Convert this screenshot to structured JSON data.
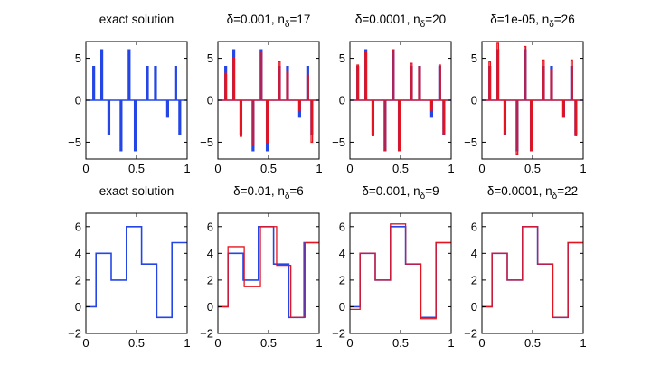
{
  "figure": {
    "colors": {
      "exact": "#2446e6",
      "recon": "#e6141e",
      "axis": "#000000"
    }
  },
  "chart_data": [
    {
      "type": "line",
      "title": "exact solution",
      "title_parts": [
        {
          "text": "exact solution"
        }
      ],
      "xlim": [
        0,
        1
      ],
      "ylim": [
        -7,
        7
      ],
      "xticks": [
        0,
        0.5,
        1
      ],
      "xtick_labels": [
        "0",
        "0.5",
        "1"
      ],
      "yticks": [
        -5,
        0,
        5
      ],
      "ytick_labels": [
        "−5",
        "0",
        "5"
      ],
      "spikes": {
        "x": [
          0.07,
          0.15,
          0.22,
          0.34,
          0.42,
          0.48,
          0.6,
          0.68,
          0.8,
          0.88,
          0.92
        ],
        "h": [
          4,
          6,
          -4,
          -6,
          6,
          -6,
          4,
          4,
          -2,
          4,
          -4
        ]
      },
      "series": [
        {
          "name": "exact",
          "color": "#2446e6",
          "x": [
            0.07,
            0.15,
            0.22,
            0.34,
            0.42,
            0.48,
            0.6,
            0.68,
            0.8,
            0.88,
            0.92
          ],
          "y": [
            4,
            6,
            -4,
            -6,
            6,
            -6,
            4,
            4,
            -2,
            4,
            -4
          ]
        }
      ]
    },
    {
      "type": "line",
      "title": "δ=0.001, nδ=17",
      "title_parts": [
        {
          "text": "δ=0.001, n"
        },
        {
          "text": "δ",
          "sub": true
        },
        {
          "text": "=17"
        }
      ],
      "xlim": [
        0,
        1
      ],
      "ylim": [
        -7,
        7
      ],
      "xticks": [
        0,
        0.5,
        1
      ],
      "xtick_labels": [
        "0",
        "0.5",
        "1"
      ],
      "yticks": [
        -5,
        0,
        5
      ],
      "ytick_labels": [
        "−5",
        "0",
        "5"
      ],
      "spikes": {
        "x": [
          0.07,
          0.15,
          0.22,
          0.34,
          0.42,
          0.48,
          0.6,
          0.68,
          0.8,
          0.88,
          0.92
        ],
        "h": [
          4,
          6,
          -4,
          -6,
          6,
          -6,
          4,
          4,
          -2,
          4,
          -4
        ]
      },
      "series": [
        {
          "name": "exact",
          "color": "#2446e6",
          "x": [
            0.07,
            0.15,
            0.22,
            0.34,
            0.42,
            0.48,
            0.6,
            0.68,
            0.8,
            0.88,
            0.92
          ],
          "y": [
            4,
            6,
            -4,
            -6,
            6,
            -6,
            4,
            4,
            -2,
            4,
            -4
          ]
        },
        {
          "name": "reconstruction",
          "color": "#e6141e",
          "x": [
            0.07,
            0.15,
            0.22,
            0.34,
            0.42,
            0.48,
            0.6,
            0.68,
            0.8,
            0.88,
            0.92
          ],
          "y": [
            3.2,
            5.0,
            -4.3,
            -5.2,
            5.8,
            -5.0,
            4.6,
            3.4,
            -1.2,
            3.0,
            -5.0
          ]
        }
      ]
    },
    {
      "type": "line",
      "title": "δ=0.0001, nδ=20",
      "title_parts": [
        {
          "text": "δ=0.0001, n"
        },
        {
          "text": "δ",
          "sub": true
        },
        {
          "text": "=20"
        }
      ],
      "xlim": [
        0,
        1
      ],
      "ylim": [
        -7,
        7
      ],
      "xticks": [
        0,
        0.5,
        1
      ],
      "xtick_labels": [
        "0",
        "0.5",
        "1"
      ],
      "yticks": [
        -5,
        0,
        5
      ],
      "ytick_labels": [
        "−5",
        "0",
        "5"
      ],
      "spikes": {
        "x": [
          0.07,
          0.15,
          0.22,
          0.34,
          0.42,
          0.48,
          0.6,
          0.68,
          0.8,
          0.88,
          0.92
        ],
        "h": [
          4,
          6,
          -4,
          -6,
          6,
          -6,
          4,
          4,
          -2,
          4,
          -4
        ]
      },
      "series": [
        {
          "name": "exact",
          "color": "#2446e6",
          "x": [
            0.07,
            0.15,
            0.22,
            0.34,
            0.42,
            0.48,
            0.6,
            0.68,
            0.8,
            0.88,
            0.92
          ],
          "y": [
            4,
            6,
            -4,
            -6,
            6,
            -6,
            4,
            4,
            -2,
            4,
            -4
          ]
        },
        {
          "name": "reconstruction",
          "color": "#e6141e",
          "x": [
            0.07,
            0.15,
            0.22,
            0.34,
            0.42,
            0.48,
            0.6,
            0.68,
            0.8,
            0.88,
            0.92
          ],
          "y": [
            4.2,
            5.8,
            -4.2,
            -6.0,
            6.0,
            -6.0,
            4.4,
            4.0,
            -1.2,
            4.2,
            -4.0
          ]
        }
      ]
    },
    {
      "type": "line",
      "title": "δ=1e-05, nδ=26",
      "title_parts": [
        {
          "text": "δ=1e-05, n"
        },
        {
          "text": "δ",
          "sub": true
        },
        {
          "text": "=26"
        }
      ],
      "xlim": [
        0,
        1
      ],
      "ylim": [
        -7,
        7
      ],
      "xticks": [
        0,
        0.5,
        1
      ],
      "xtick_labels": [
        "0",
        "0.5",
        "1"
      ],
      "yticks": [
        -5,
        0,
        5
      ],
      "ytick_labels": [
        "−5",
        "0",
        "5"
      ],
      "spikes": {
        "x": [
          0.07,
          0.15,
          0.22,
          0.34,
          0.42,
          0.48,
          0.6,
          0.68,
          0.8,
          0.88,
          0.92
        ],
        "h": [
          4,
          6,
          -4,
          -6,
          6,
          -6,
          4,
          4,
          -2,
          4,
          -4
        ]
      },
      "series": [
        {
          "name": "exact",
          "color": "#2446e6",
          "x": [
            0.07,
            0.15,
            0.22,
            0.34,
            0.42,
            0.48,
            0.6,
            0.68,
            0.8,
            0.88,
            0.92
          ],
          "y": [
            4,
            6,
            -4,
            -6,
            6,
            -6,
            4,
            4,
            -2,
            4,
            -4
          ]
        },
        {
          "name": "reconstruction",
          "color": "#e6141e",
          "x": [
            0.07,
            0.15,
            0.22,
            0.34,
            0.42,
            0.48,
            0.6,
            0.68,
            0.8,
            0.88,
            0.92
          ],
          "y": [
            4.6,
            6.8,
            -4.0,
            -6.4,
            6.4,
            -6.0,
            4.8,
            3.6,
            -2.0,
            4.8,
            -4.2
          ]
        }
      ]
    },
    {
      "type": "line",
      "title": "exact solution",
      "title_parts": [
        {
          "text": "exact solution"
        }
      ],
      "xlim": [
        0,
        1
      ],
      "ylim": [
        -2,
        7
      ],
      "xticks": [
        0,
        0.5,
        1
      ],
      "xtick_labels": [
        "0",
        "0.5",
        "1"
      ],
      "yticks": [
        -2,
        0,
        2,
        4,
        6
      ],
      "ytick_labels": [
        "−2",
        "0",
        "2",
        "4",
        "6"
      ],
      "series": [
        {
          "name": "exact",
          "color": "#2446e6",
          "x": [
            0,
            0.1,
            0.1,
            0.25,
            0.25,
            0.4,
            0.4,
            0.55,
            0.55,
            0.7,
            0.7,
            0.85,
            0.85,
            1.0
          ],
          "y": [
            0,
            0,
            4,
            4,
            2,
            2,
            6,
            6,
            3.2,
            3.2,
            -0.8,
            -0.8,
            4.8,
            4.8
          ]
        }
      ]
    },
    {
      "type": "line",
      "title": "δ=0.01, nδ=6",
      "title_parts": [
        {
          "text": "δ=0.01, n"
        },
        {
          "text": "δ",
          "sub": true
        },
        {
          "text": "=6"
        }
      ],
      "xlim": [
        0,
        1
      ],
      "ylim": [
        -2,
        7
      ],
      "xticks": [
        0,
        0.5,
        1
      ],
      "xtick_labels": [
        "0",
        "0.5",
        "1"
      ],
      "yticks": [
        -2,
        0,
        2,
        4,
        6
      ],
      "ytick_labels": [
        "−2",
        "0",
        "2",
        "4",
        "6"
      ],
      "series": [
        {
          "name": "exact",
          "color": "#2446e6",
          "x": [
            0,
            0.1,
            0.1,
            0.25,
            0.25,
            0.4,
            0.4,
            0.55,
            0.55,
            0.7,
            0.7,
            0.85,
            0.85,
            1.0
          ],
          "y": [
            0,
            0,
            4,
            4,
            2,
            2,
            6,
            6,
            3.2,
            3.2,
            -0.8,
            -0.8,
            4.8,
            4.8
          ]
        },
        {
          "name": "reconstruction",
          "color": "#e6141e",
          "x": [
            0,
            0.1,
            0.1,
            0.26,
            0.26,
            0.42,
            0.42,
            0.58,
            0.58,
            0.72,
            0.72,
            0.86,
            0.86,
            1.0
          ],
          "y": [
            0,
            0,
            4.5,
            4.5,
            1.5,
            1.5,
            6.0,
            6.0,
            3.1,
            3.1,
            -0.8,
            -0.8,
            4.8,
            4.8
          ]
        }
      ]
    },
    {
      "type": "line",
      "title": "δ=0.001, nδ=9",
      "title_parts": [
        {
          "text": "δ=0.001, n"
        },
        {
          "text": "δ",
          "sub": true
        },
        {
          "text": "=9"
        }
      ],
      "xlim": [
        0,
        1
      ],
      "ylim": [
        -2,
        7
      ],
      "xticks": [
        0,
        0.5,
        1
      ],
      "xtick_labels": [
        "0",
        "0.5",
        "1"
      ],
      "yticks": [
        -2,
        0,
        2,
        4,
        6
      ],
      "ytick_labels": [
        "−2",
        "0",
        "2",
        "4",
        "6"
      ],
      "series": [
        {
          "name": "exact",
          "color": "#2446e6",
          "x": [
            0,
            0.1,
            0.1,
            0.25,
            0.25,
            0.4,
            0.4,
            0.55,
            0.55,
            0.7,
            0.7,
            0.85,
            0.85,
            1.0
          ],
          "y": [
            0,
            0,
            4,
            4,
            2,
            2,
            6,
            6,
            3.2,
            3.2,
            -0.8,
            -0.8,
            4.8,
            4.8
          ]
        },
        {
          "name": "reconstruction",
          "color": "#e6141e",
          "x": [
            0,
            0.1,
            0.1,
            0.25,
            0.25,
            0.4,
            0.4,
            0.55,
            0.55,
            0.7,
            0.7,
            0.85,
            0.85,
            1.0
          ],
          "y": [
            -0.2,
            -0.2,
            4.0,
            4.0,
            2.0,
            2.0,
            6.2,
            6.2,
            3.2,
            3.2,
            -0.9,
            -0.9,
            4.8,
            4.8
          ]
        }
      ]
    },
    {
      "type": "line",
      "title": "δ=0.0001, nδ=22",
      "title_parts": [
        {
          "text": "δ=0.0001, n"
        },
        {
          "text": "δ",
          "sub": true
        },
        {
          "text": "=22"
        }
      ],
      "xlim": [
        0,
        1
      ],
      "ylim": [
        -2,
        7
      ],
      "xticks": [
        0,
        0.5,
        1
      ],
      "xtick_labels": [
        "0",
        "0.5",
        "1"
      ],
      "yticks": [
        -2,
        0,
        2,
        4,
        6
      ],
      "ytick_labels": [
        "−2",
        "0",
        "2",
        "4",
        "6"
      ],
      "series": [
        {
          "name": "exact",
          "color": "#2446e6",
          "x": [
            0,
            0.1,
            0.1,
            0.25,
            0.25,
            0.4,
            0.4,
            0.55,
            0.55,
            0.7,
            0.7,
            0.85,
            0.85,
            1.0
          ],
          "y": [
            0,
            0,
            4,
            4,
            2,
            2,
            6,
            6,
            3.2,
            3.2,
            -0.8,
            -0.8,
            4.8,
            4.8
          ]
        },
        {
          "name": "reconstruction",
          "color": "#e6141e",
          "x": [
            0,
            0.1,
            0.1,
            0.25,
            0.25,
            0.4,
            0.4,
            0.55,
            0.55,
            0.7,
            0.7,
            0.85,
            0.85,
            1.0
          ],
          "y": [
            0,
            0,
            4,
            4,
            2,
            2,
            6,
            6,
            3.2,
            3.2,
            -0.8,
            -0.8,
            4.8,
            4.8
          ]
        }
      ]
    }
  ]
}
